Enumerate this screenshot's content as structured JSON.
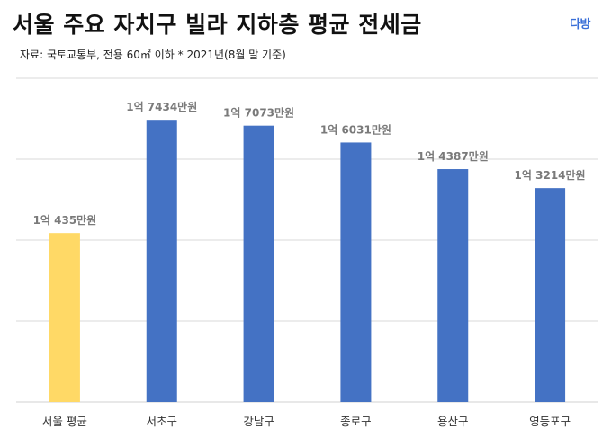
{
  "header": {
    "title": "서울 주요 자치구 빌라 지하층 평균 전세금",
    "logo": "다방",
    "source": "자료: 국토교통부, 전용 60㎡ 이하 * 2021년(8월 말 기준)"
  },
  "colors": {
    "highlight": "#FFD966",
    "bar": "#4472C4",
    "grid": "#D9D9D9"
  },
  "chart_data": {
    "type": "bar",
    "title": "서울 주요 자치구 빌라 지하층 평균 전세금",
    "categories": [
      "서울 평균",
      "서초구",
      "강남구",
      "종로구",
      "용산구",
      "영등포구"
    ],
    "values": [
      10435,
      17434,
      17073,
      16031,
      14387,
      13214
    ],
    "value_labels": [
      "1억 435만원",
      "1억 7434만원",
      "1억 7073만원",
      "1억 6031만원",
      "1억 4387만원",
      "1억 3214만원"
    ],
    "unit": "만원",
    "highlight_index": 0,
    "ylim": [
      0,
      20000
    ],
    "grid": true,
    "legend": "none"
  }
}
